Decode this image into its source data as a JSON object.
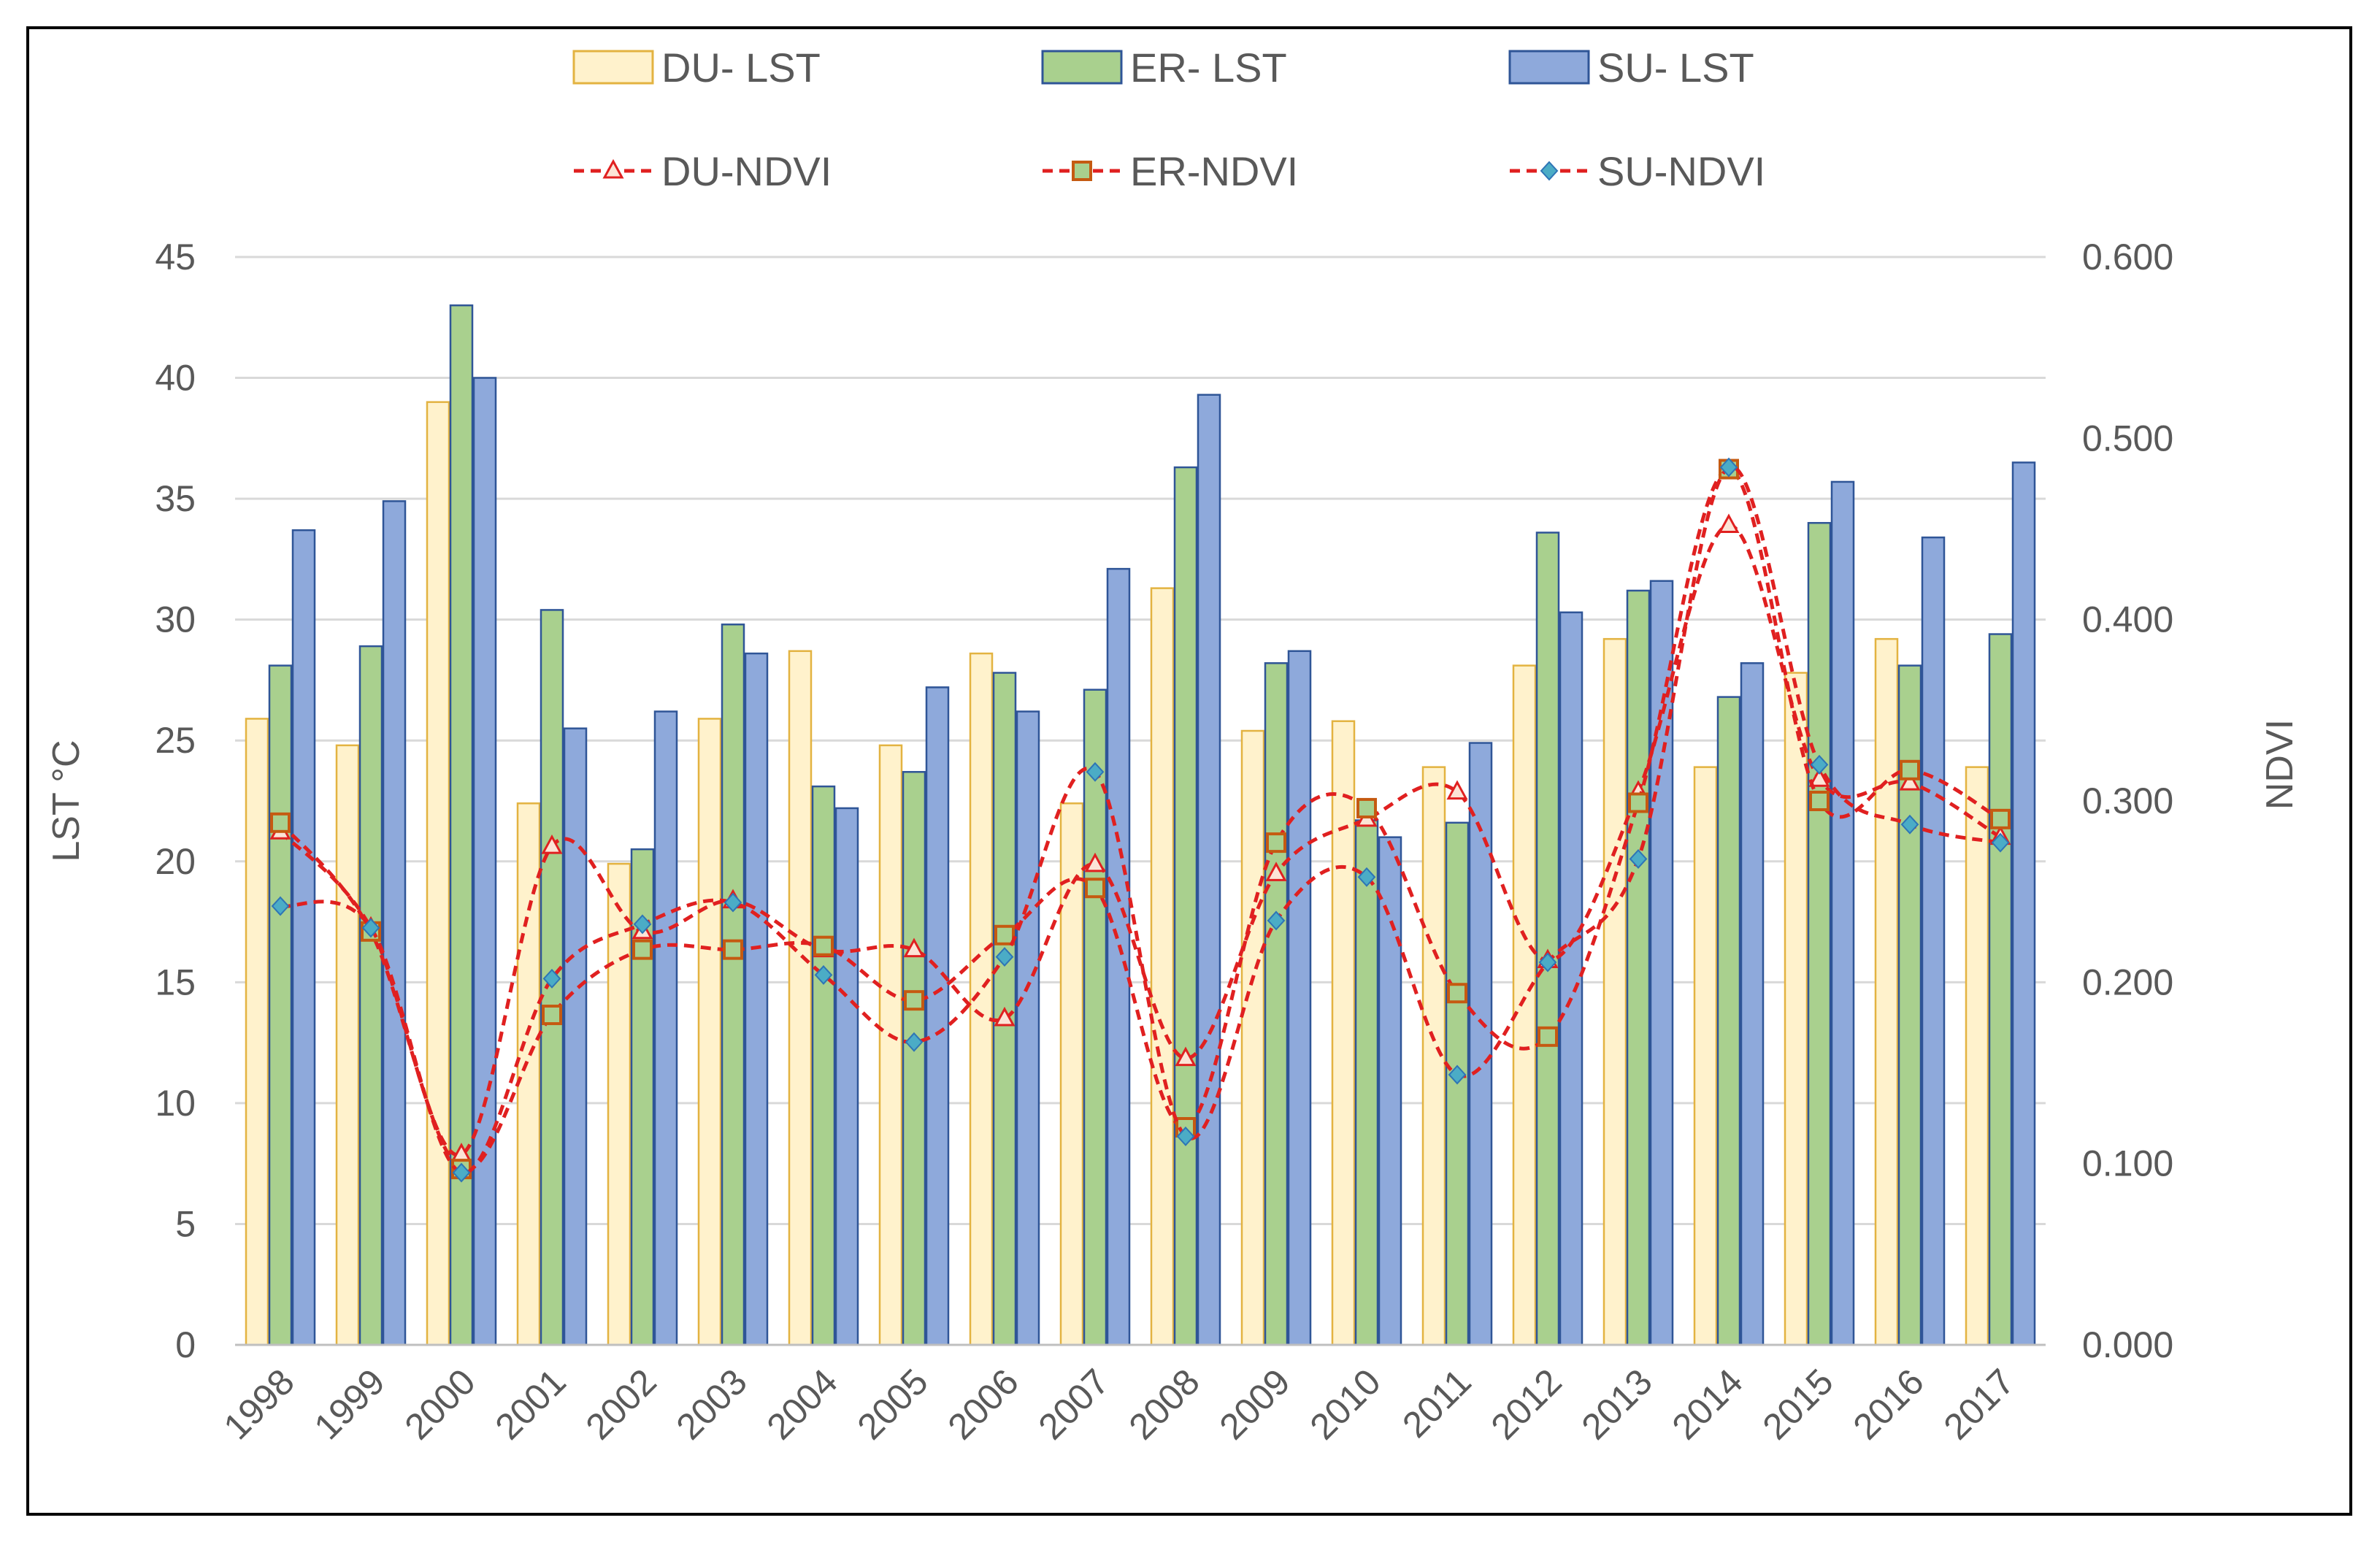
{
  "chart_data": {
    "type": "bar",
    "title": "",
    "categories": [
      "1998",
      "1999",
      "2000",
      "2001",
      "2002",
      "2003",
      "2004",
      "2005",
      "2006",
      "2007",
      "2008",
      "2009",
      "2010",
      "2011",
      "2012",
      "2013",
      "2014",
      "2015",
      "2016",
      "2017"
    ],
    "series": [
      {
        "name": "DU- LST",
        "kind": "bar",
        "axis": "left",
        "color": "#FFF2CC",
        "stroke": "#E3B341",
        "values": [
          25.9,
          24.8,
          39.0,
          22.4,
          19.9,
          25.9,
          28.7,
          24.8,
          28.6,
          22.4,
          31.3,
          25.4,
          25.8,
          23.9,
          28.1,
          29.2,
          23.9,
          27.8,
          29.2,
          23.9
        ]
      },
      {
        "name": "ER- LST",
        "kind": "bar",
        "axis": "left",
        "color": "#A9D08E",
        "stroke": "#2F5597",
        "values": [
          28.1,
          28.9,
          43.0,
          30.4,
          20.5,
          29.8,
          23.1,
          23.7,
          27.8,
          27.1,
          36.3,
          28.2,
          21.7,
          21.6,
          33.6,
          31.2,
          26.8,
          34.0,
          28.1,
          29.4
        ]
      },
      {
        "name": "SU- LST",
        "kind": "bar",
        "axis": "left",
        "color": "#8EA9DB",
        "stroke": "#2F5597",
        "values": [
          33.7,
          34.9,
          40.0,
          25.5,
          26.2,
          28.6,
          22.2,
          27.2,
          26.2,
          32.1,
          39.3,
          28.7,
          21.0,
          24.9,
          30.3,
          31.6,
          28.2,
          35.7,
          33.4,
          36.5
        ]
      },
      {
        "name": "DU-NDVI",
        "kind": "line",
        "axis": "right",
        "marker": "triangle",
        "color": "#E02020",
        "values": [
          0.283,
          0.23,
          0.105,
          0.275,
          0.228,
          0.245,
          0.218,
          0.218,
          0.18,
          0.265,
          0.158,
          0.26,
          0.29,
          0.305,
          0.212,
          0.305,
          0.452,
          0.312,
          0.31,
          0.28
        ]
      },
      {
        "name": "ER-NDVI",
        "kind": "line",
        "axis": "right",
        "marker": "square",
        "color": "#E02020",
        "values": [
          0.288,
          0.228,
          0.097,
          0.182,
          0.218,
          0.218,
          0.22,
          0.19,
          0.226,
          0.252,
          0.12,
          0.277,
          0.296,
          0.194,
          0.17,
          0.299,
          0.483,
          0.3,
          0.317,
          0.29
        ]
      },
      {
        "name": "SU-NDVI",
        "kind": "line",
        "axis": "right",
        "marker": "diamond",
        "color": "#E02020",
        "values": [
          0.242,
          0.23,
          0.095,
          0.202,
          0.232,
          0.244,
          0.204,
          0.167,
          0.214,
          0.316,
          0.115,
          0.234,
          0.258,
          0.149,
          0.211,
          0.268,
          0.484,
          0.32,
          0.287,
          0.277
        ]
      }
    ],
    "ylabel": "LST °C",
    "ylim": [
      0,
      45
    ],
    "yticks": [
      "0",
      "5",
      "10",
      "15",
      "20",
      "25",
      "30",
      "35",
      "40",
      "45"
    ],
    "y2label": "NDVI",
    "y2lim": [
      0,
      0.6
    ],
    "y2ticks": [
      "0.000",
      "0.100",
      "0.200",
      "0.300",
      "0.400",
      "0.500",
      "0.600"
    ],
    "grid": true,
    "legend_position": "top"
  }
}
